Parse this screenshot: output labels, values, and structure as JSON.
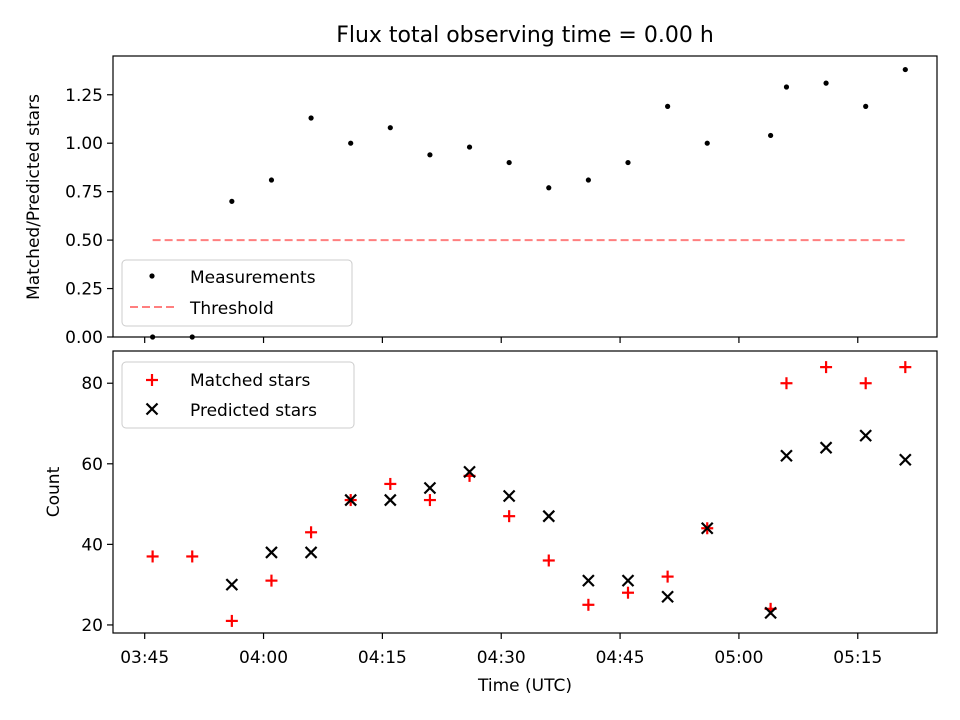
{
  "chart_data": [
    {
      "type": "scatter",
      "title": "Flux total observing time = 0.00 h",
      "xlabel": "",
      "ylabel": "Matched/Predicted stars",
      "ylim": [
        0,
        1.45
      ],
      "yticks": [
        "0.00",
        "0.25",
        "0.50",
        "0.75",
        "1.00",
        "1.25"
      ],
      "ytick_values": [
        0,
        0.25,
        0.5,
        0.75,
        1.0,
        1.25
      ],
      "legend_position": "lower-left",
      "series": [
        {
          "name": "Measurements",
          "marker": "dot",
          "color": "#000000",
          "x": [
            "03:46",
            "03:51",
            "03:56",
            "04:01",
            "04:06",
            "04:11",
            "04:16",
            "04:21",
            "04:26",
            "04:31",
            "04:36",
            "04:41",
            "04:46",
            "04:51",
            "04:56",
            "05:04",
            "05:06",
            "05:11",
            "05:16",
            "05:21"
          ],
          "values": [
            0.0,
            0.0,
            0.7,
            0.81,
            1.13,
            1.0,
            1.08,
            0.94,
            0.98,
            0.9,
            0.77,
            0.81,
            0.9,
            1.19,
            1.0,
            1.04,
            1.29,
            1.31,
            1.19,
            1.38
          ]
        },
        {
          "name": "Threshold",
          "line": "dashed",
          "color": "#ff7f7f",
          "x": [
            "03:46",
            "05:21"
          ],
          "values": [
            0.5,
            0.5
          ]
        }
      ]
    },
    {
      "type": "scatter",
      "xlabel": "Time (UTC)",
      "ylabel": "Count",
      "ylim": [
        18,
        88
      ],
      "yticks": [
        "20",
        "40",
        "60",
        "80"
      ],
      "ytick_values": [
        20,
        40,
        60,
        80
      ],
      "xlim": [
        "03:41",
        "05:25"
      ],
      "xticks": [
        "03:45",
        "04:00",
        "04:15",
        "04:30",
        "04:45",
        "05:00",
        "05:15"
      ],
      "legend_position": "upper-left",
      "series": [
        {
          "name": "Matched stars",
          "marker": "plus",
          "color": "#ff0000",
          "x": [
            "03:46",
            "03:51",
            "03:56",
            "04:01",
            "04:06",
            "04:11",
            "04:16",
            "04:21",
            "04:26",
            "04:31",
            "04:36",
            "04:41",
            "04:46",
            "04:51",
            "04:56",
            "05:04",
            "05:06",
            "05:11",
            "05:16",
            "05:21"
          ],
          "values": [
            37,
            37,
            21,
            31,
            43,
            51,
            55,
            51,
            57,
            47,
            36,
            25,
            28,
            32,
            44,
            24,
            80,
            84,
            80,
            84
          ]
        },
        {
          "name": "Predicted stars",
          "marker": "x",
          "color": "#000000",
          "x": [
            "03:56",
            "04:01",
            "04:06",
            "04:11",
            "04:16",
            "04:21",
            "04:26",
            "04:31",
            "04:36",
            "04:41",
            "04:46",
            "04:51",
            "04:56",
            "05:04",
            "05:06",
            "05:11",
            "05:16",
            "05:21"
          ],
          "values": [
            30,
            38,
            38,
            51,
            51,
            54,
            58,
            52,
            47,
            31,
            31,
            27,
            44,
            23,
            62,
            64,
            67,
            61
          ]
        }
      ]
    }
  ]
}
